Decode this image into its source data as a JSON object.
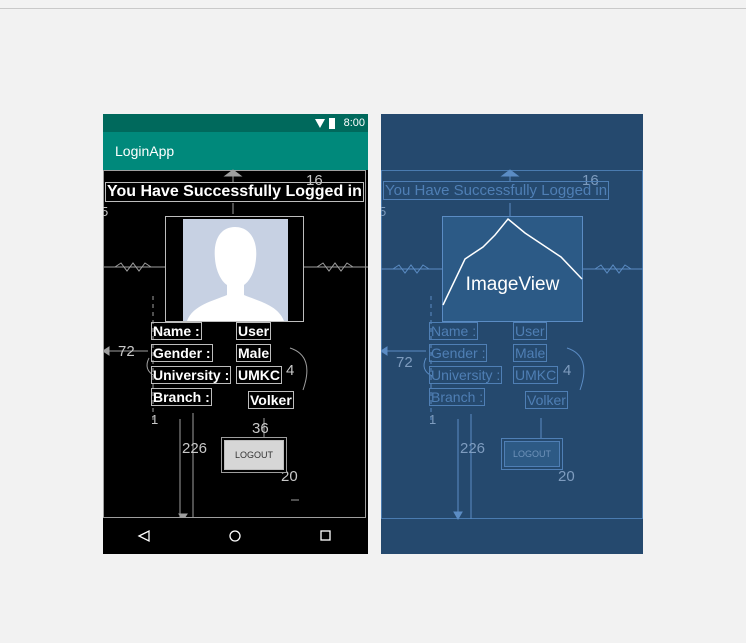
{
  "status_bar": {
    "time": "8:00"
  },
  "app_bar": {
    "title": "LoginApp"
  },
  "screen": {
    "heading": "You Have Successfully Logged in",
    "labels": {
      "name": "Name :",
      "gender": "Gender :",
      "university": "University :",
      "branch": "Branch :"
    },
    "values": {
      "name": "User",
      "gender": "Male",
      "university": "UMKC",
      "branch": "Volker"
    },
    "logout_button": "LOGOUT"
  },
  "constraint_numbers": {
    "top_margin": "16",
    "left_margin": "5",
    "label_left": "72",
    "label_right": "4",
    "branch_margin": "1",
    "button_top": "36",
    "button_left": "226",
    "button_bottom": "20"
  },
  "blueprint": {
    "image_view_label": "ImageView"
  },
  "colors": {
    "status_bar": "#00695c",
    "app_bar": "#00897b",
    "blueprint_bg": "#25496e",
    "avatar_bg": "#c7d1e3"
  }
}
